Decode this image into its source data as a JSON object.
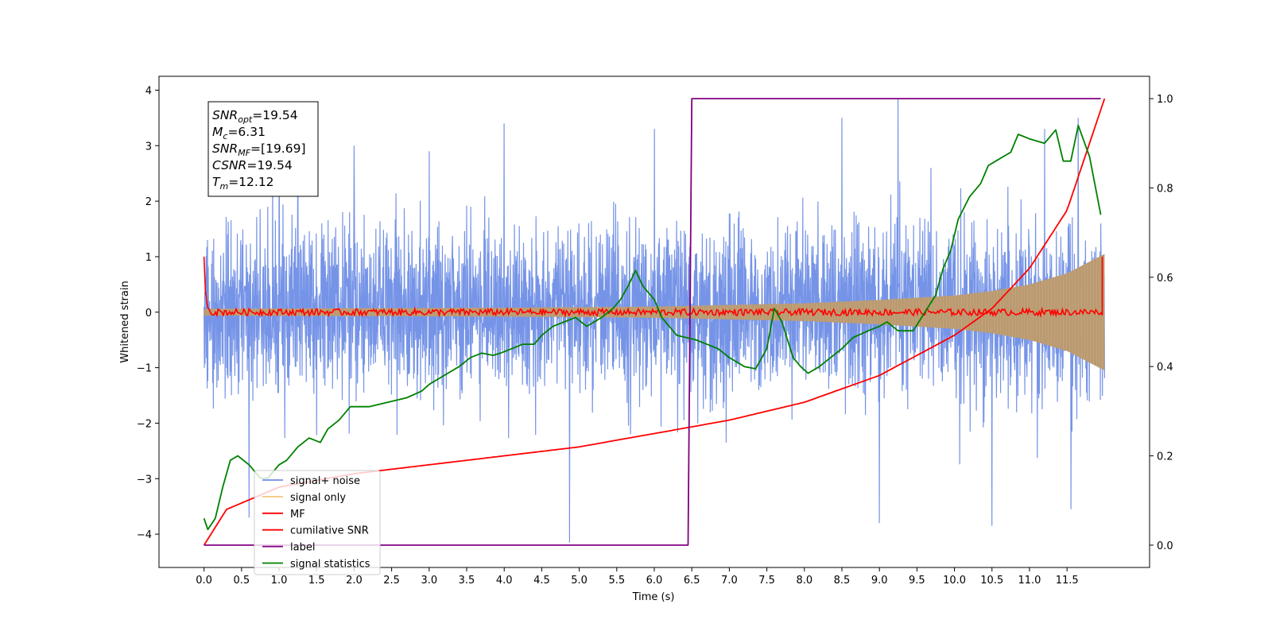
{
  "chart_data": {
    "type": "line",
    "xlabel": "Time (s)",
    "ylabel": "Whitened strain",
    "y2label": "",
    "xlim": [
      -0.6,
      12.6
    ],
    "ylim": [
      -4.6,
      4.25
    ],
    "y2lim": [
      -0.05,
      1.05
    ],
    "xticks": [
      "0.0",
      "0.5",
      "1.0",
      "1.5",
      "2.0",
      "2.5",
      "3.0",
      "3.5",
      "4.0",
      "4.5",
      "5.0",
      "5.5",
      "6.0",
      "6.5",
      "7.0",
      "7.5",
      "8.0",
      "8.5",
      "9.0",
      "9.5",
      "10.0",
      "10.5",
      "11.0",
      "11.5"
    ],
    "yticks": [
      "4",
      "3",
      "2",
      "1",
      "0",
      "−1",
      "−2",
      "−3",
      "−4"
    ],
    "y2ticks": [
      "1.0",
      "0.8",
      "0.6",
      "0.4",
      "0.2",
      "0.0"
    ],
    "stats_box": {
      "lines": [
        {
          "sym": "SNR",
          "sub": "opt",
          "value": "=19.54"
        },
        {
          "sym": "M",
          "sub": "c",
          "value": "=6.31"
        },
        {
          "sym": "SNR",
          "sub": "MF",
          "value": "=[19.69]"
        },
        {
          "sym": "CSNR",
          "sub": "",
          "value": "=19.54"
        },
        {
          "sym": "T",
          "sub": "m",
          "value": "=12.12"
        }
      ]
    },
    "legend_location": "lower-left",
    "legend": [
      "signal+ noise",
      "signal only",
      "MF",
      "cumilative SNR",
      "label",
      "signal statistics"
    ],
    "colors": {
      "noise": "#6f8ee6",
      "signal": "#f5c77e",
      "mf": "#ff0000",
      "csnr": "#ff0000",
      "label": "#800080",
      "stats": "#008000"
    },
    "series": [
      {
        "name": "signal+ noise",
        "axis": "left",
        "x_range": [
          0.0,
          12.0
        ],
        "band_envelope": [
          [
            0.0,
            2.0
          ],
          [
            6.0,
            2.1
          ],
          [
            12.0,
            2.4
          ]
        ],
        "peaks": [
          [
            1.0,
            3.2
          ],
          [
            1.25,
            3.4
          ],
          [
            2.0,
            3.0
          ],
          [
            3.0,
            2.9
          ],
          [
            4.0,
            3.4
          ],
          [
            6.0,
            3.3
          ],
          [
            8.5,
            3.5
          ],
          [
            9.25,
            3.85
          ],
          [
            11.2,
            3.3
          ],
          [
            11.65,
            3.5
          ],
          [
            4.87,
            -4.15
          ],
          [
            0.6,
            -3.7
          ],
          [
            9.0,
            -3.8
          ],
          [
            10.5,
            -3.85
          ],
          [
            11.55,
            -3.55
          ]
        ]
      },
      {
        "name": "signal only",
        "axis": "left",
        "x": [
          0.0,
          2.0,
          4.0,
          6.0,
          8.0,
          9.0,
          10.0,
          10.5,
          11.0,
          11.5,
          12.0
        ],
        "amplitude": [
          0.06,
          0.07,
          0.08,
          0.1,
          0.16,
          0.22,
          0.3,
          0.38,
          0.5,
          0.7,
          1.05
        ]
      },
      {
        "name": "MF",
        "axis": "left",
        "x": [
          0.0,
          0.02,
          0.05,
          0.1,
          12.0
        ],
        "values": [
          1.0,
          0.3,
          0.08,
          0.0,
          0.0
        ],
        "end_spike": [
          11.97,
          1.0
        ],
        "noise_amplitude": 0.06
      },
      {
        "name": "cumilative SNR",
        "axis": "right",
        "x": [
          0.0,
          0.3,
          1.0,
          2.0,
          3.0,
          4.0,
          5.0,
          6.0,
          7.0,
          8.0,
          9.0,
          10.0,
          10.5,
          11.0,
          11.5,
          12.0
        ],
        "values": [
          0.0,
          0.08,
          0.13,
          0.16,
          0.18,
          0.2,
          0.22,
          0.25,
          0.28,
          0.32,
          0.38,
          0.47,
          0.53,
          0.62,
          0.75,
          1.0
        ]
      },
      {
        "name": "label",
        "axis": "right",
        "x": [
          0.0,
          6.45,
          6.5,
          11.95
        ],
        "values": [
          0.0,
          0.0,
          1.0,
          1.0
        ]
      },
      {
        "name": "signal statistics",
        "axis": "right",
        "x": [
          0.0,
          0.05,
          0.15,
          0.25,
          0.35,
          0.45,
          0.6,
          0.75,
          0.85,
          1.0,
          1.1,
          1.25,
          1.4,
          1.55,
          1.65,
          1.8,
          1.95,
          2.2,
          2.45,
          2.7,
          2.9,
          3.0,
          3.2,
          3.4,
          3.55,
          3.7,
          3.85,
          3.95,
          4.1,
          4.25,
          4.4,
          4.5,
          4.65,
          4.8,
          4.95,
          5.1,
          5.3,
          5.45,
          5.55,
          5.65,
          5.75,
          5.85,
          6.0,
          6.1,
          6.3,
          6.55,
          6.7,
          6.85,
          7.0,
          7.2,
          7.35,
          7.5,
          7.6,
          7.7,
          7.85,
          7.95,
          8.05,
          8.2,
          8.35,
          8.5,
          8.65,
          8.85,
          9.0,
          9.1,
          9.25,
          9.45,
          9.6,
          9.75,
          9.85,
          9.95,
          10.05,
          10.2,
          10.35,
          10.45,
          10.55,
          10.65,
          10.75,
          10.85,
          11.0,
          11.2,
          11.35,
          11.45,
          11.55,
          11.65,
          11.8,
          11.95
        ],
        "values": [
          0.06,
          0.035,
          0.06,
          0.13,
          0.19,
          0.2,
          0.18,
          0.15,
          0.15,
          0.18,
          0.19,
          0.22,
          0.24,
          0.23,
          0.26,
          0.28,
          0.31,
          0.31,
          0.32,
          0.33,
          0.345,
          0.36,
          0.38,
          0.4,
          0.42,
          0.43,
          0.425,
          0.43,
          0.44,
          0.45,
          0.45,
          0.47,
          0.49,
          0.5,
          0.51,
          0.49,
          0.51,
          0.53,
          0.55,
          0.58,
          0.615,
          0.58,
          0.55,
          0.51,
          0.47,
          0.46,
          0.45,
          0.44,
          0.42,
          0.4,
          0.395,
          0.44,
          0.53,
          0.5,
          0.42,
          0.4,
          0.385,
          0.4,
          0.42,
          0.44,
          0.465,
          0.48,
          0.49,
          0.5,
          0.48,
          0.48,
          0.52,
          0.56,
          0.62,
          0.66,
          0.73,
          0.78,
          0.81,
          0.85,
          0.86,
          0.87,
          0.88,
          0.92,
          0.91,
          0.9,
          0.93,
          0.86,
          0.86,
          0.94,
          0.87,
          0.74
        ]
      }
    ]
  }
}
